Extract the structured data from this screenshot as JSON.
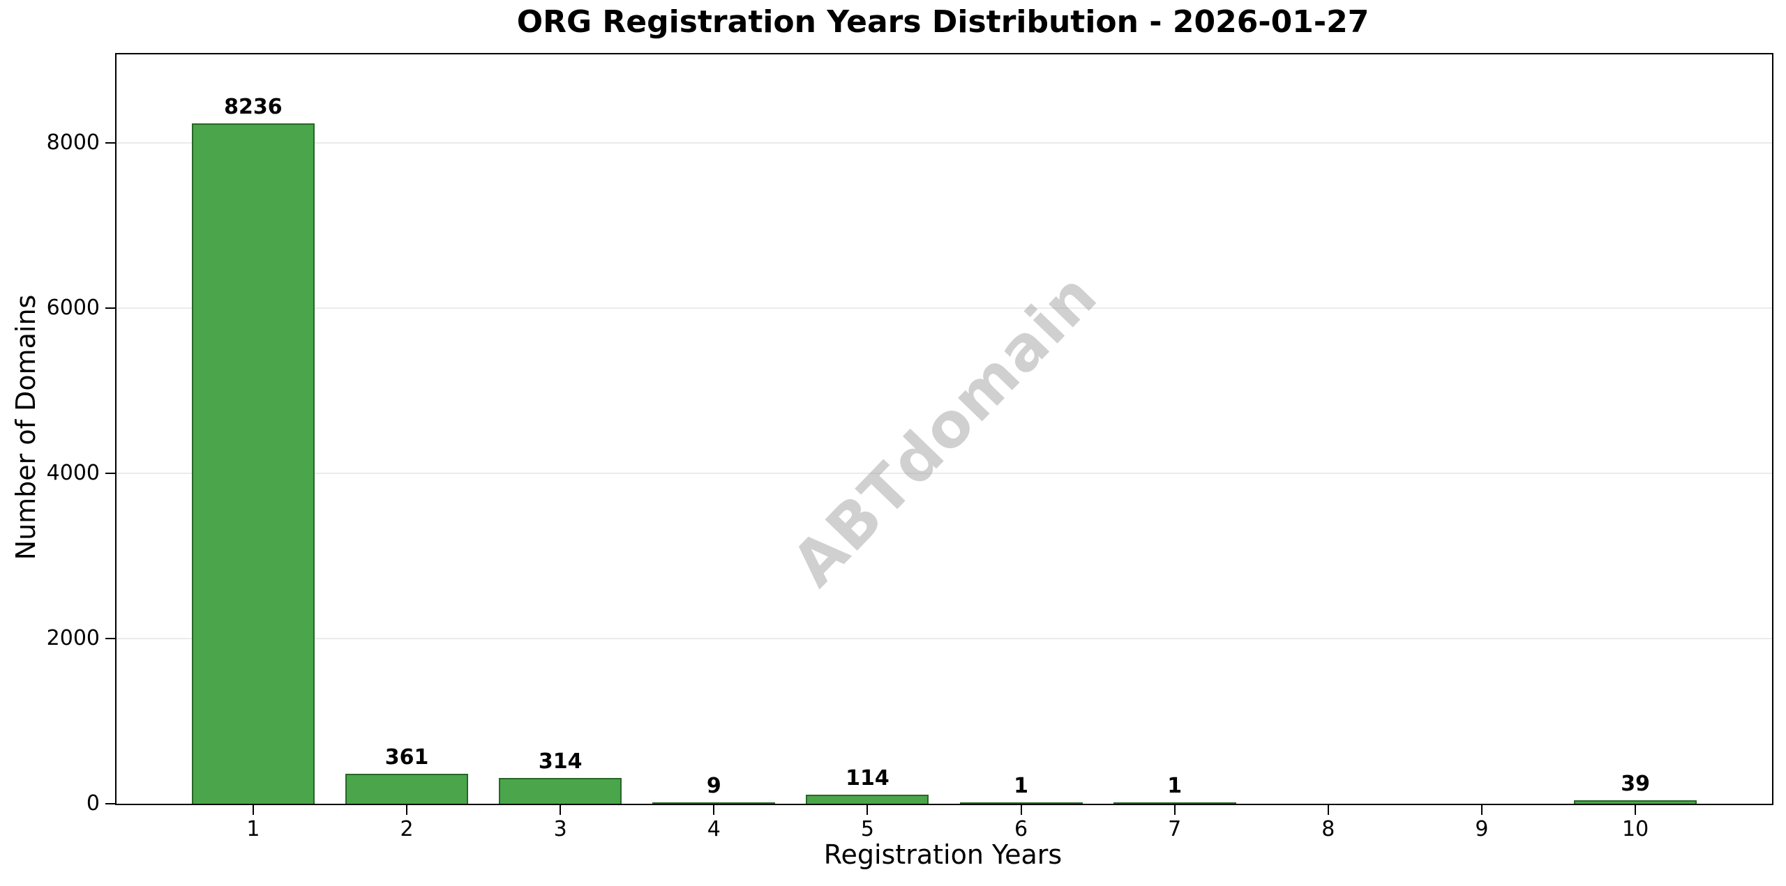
{
  "figure": {
    "background": "#ffffff"
  },
  "chart_data": {
    "type": "bar",
    "title": "ORG Registration Years Distribution - 2026-01-27",
    "xlabel": "Registration Years",
    "ylabel": "Number of Domains",
    "categories": [
      "1",
      "2",
      "3",
      "4",
      "5",
      "6",
      "7",
      "8",
      "9",
      "10"
    ],
    "values": [
      8236,
      361,
      314,
      9,
      114,
      1,
      1,
      0,
      0,
      39
    ],
    "bar_labels": [
      "8236",
      "361",
      "314",
      "9",
      "114",
      "1",
      "1",
      "",
      "",
      "39"
    ],
    "yticks": [
      0,
      2000,
      4000,
      6000,
      8000
    ],
    "ytick_labels": [
      "0",
      "2000",
      "4000",
      "6000",
      "8000"
    ],
    "ylim": [
      0,
      9070
    ],
    "xlim": [
      0.11,
      10.89
    ],
    "bar_width": 0.8,
    "grid": "horizontal",
    "legend": "none",
    "colors": {
      "bar_fill": "#4BA54B",
      "bar_edge": "#266726",
      "gridline": "#ebebeb",
      "spine": "#000000",
      "text": "#000000"
    },
    "watermark": {
      "text": "ABTdomain",
      "color": "rgba(150,150,150,0.45)",
      "rotation_deg": -46
    }
  }
}
